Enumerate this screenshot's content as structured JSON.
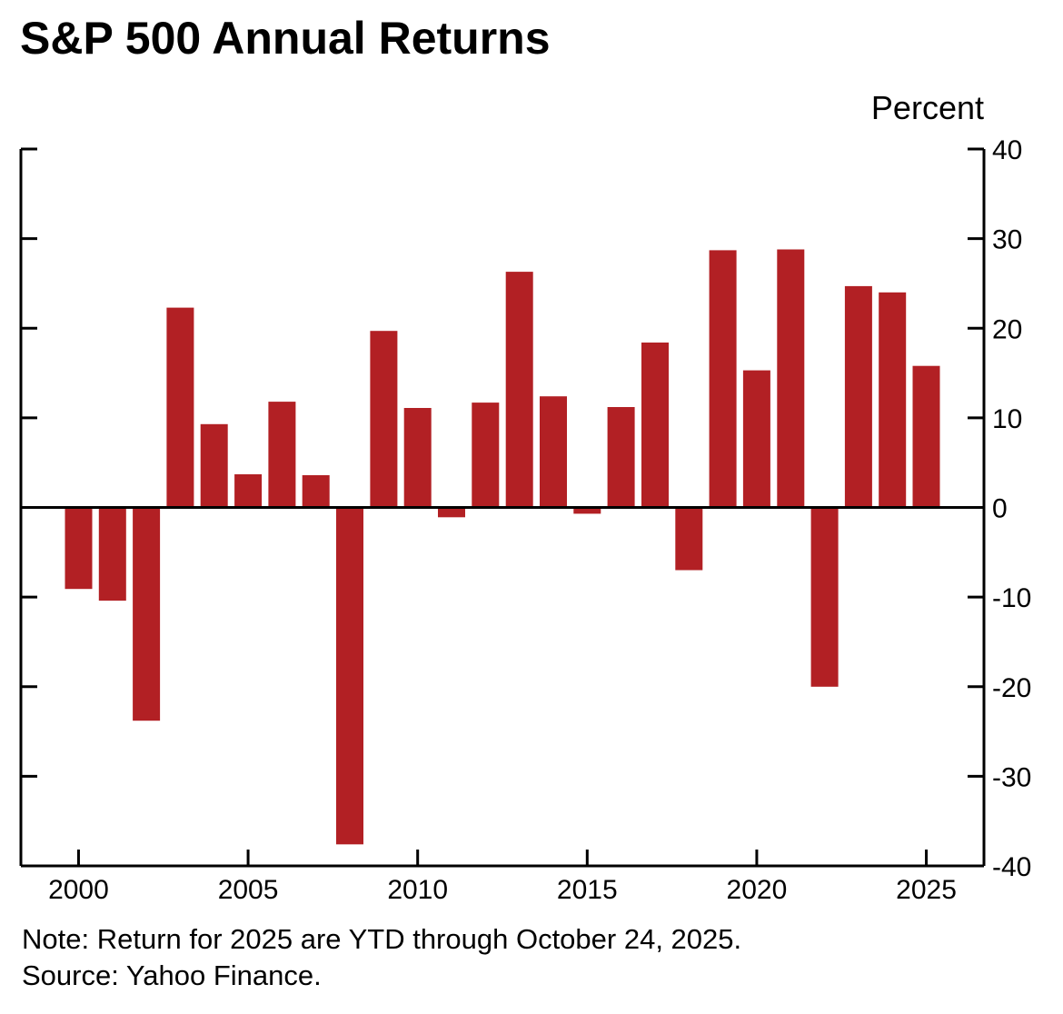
{
  "title": "S&P 500 Annual Returns",
  "unit_label": "Percent",
  "note": "Note: Return for 2025 are YTD through October 24, 2025.",
  "source": "Source: Yahoo Finance.",
  "colors": {
    "bar": "#b22024",
    "axis": "#000000"
  },
  "chart_data": {
    "type": "bar",
    "title": "S&P 500 Annual Returns",
    "ylabel": "Percent",
    "xlabel": "",
    "ylim": [
      -40,
      40
    ],
    "y_axis_side": "right",
    "y_ticks": [
      40,
      30,
      20,
      10,
      0,
      -10,
      -20,
      -30,
      -40
    ],
    "x_tick_labels": [
      "2000",
      "2005",
      "2010",
      "2015",
      "2020",
      "2025"
    ],
    "xlim": [
      1998.3,
      2026.7
    ],
    "categories": [
      "2000",
      "2001",
      "2002",
      "2003",
      "2004",
      "2005",
      "2006",
      "2007",
      "2008",
      "2009",
      "2010",
      "2011",
      "2012",
      "2013",
      "2014",
      "2015",
      "2016",
      "2017",
      "2018",
      "2019",
      "2020",
      "2021",
      "2022",
      "2023",
      "2024",
      "2025"
    ],
    "values": [
      -9.1,
      -10.4,
      -23.8,
      22.3,
      9.3,
      3.7,
      11.8,
      3.6,
      -37.6,
      19.7,
      11.1,
      -1.1,
      11.7,
      26.3,
      12.4,
      -0.7,
      11.2,
      18.4,
      -7.0,
      28.7,
      15.3,
      28.8,
      -20.0,
      24.7,
      24.0,
      15.8
    ]
  }
}
